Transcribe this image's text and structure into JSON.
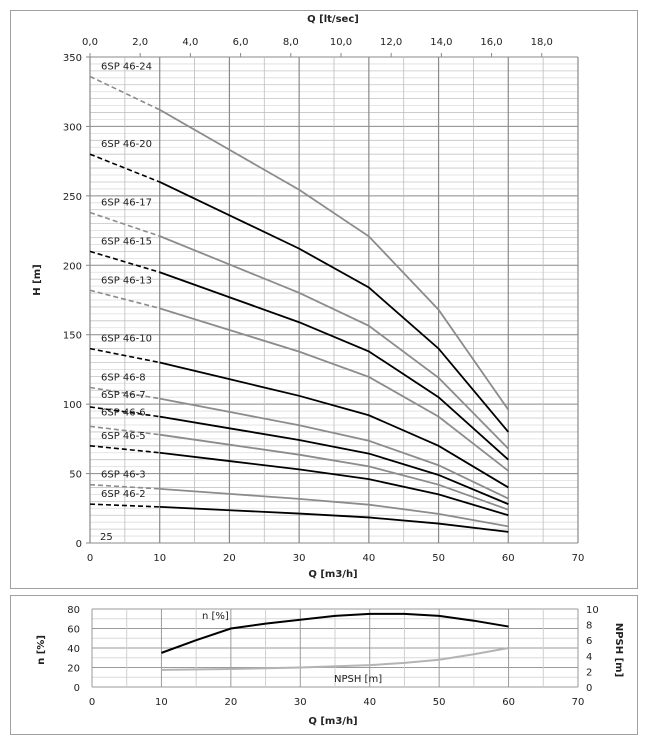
{
  "chart_data": [
    {
      "type": "line",
      "xlabel": "Q [m3/h]",
      "ylabel": "H [m]",
      "x2label": "Q [lt/sec]",
      "xlim": [
        0,
        70
      ],
      "ylim": [
        0,
        350
      ],
      "x2lim": [
        0,
        18
      ],
      "xticks": [
        0,
        10,
        20,
        30,
        40,
        50,
        60,
        70
      ],
      "yticks": [
        0,
        50,
        100,
        150,
        200,
        250,
        300,
        350
      ],
      "x2ticks": [
        "0,0",
        "2,0",
        "4,0",
        "6,0",
        "8,0",
        "10,0",
        "12,0",
        "14,0",
        "16,0",
        "18,0"
      ],
      "grid": true,
      "annotation": "25",
      "x": [
        0,
        10,
        20,
        30,
        40,
        50,
        60
      ],
      "dashed_until_x": 10,
      "series": [
        {
          "name": "6SP 46-24",
          "color": "#8c8c8c",
          "values": [
            336,
            312,
            283.2,
            254.4,
            220.8,
            168,
            96
          ]
        },
        {
          "name": "6SP 46-20",
          "color": "#000000",
          "values": [
            280,
            260,
            236,
            212,
            184,
            140,
            80
          ]
        },
        {
          "name": "6SP 46-17",
          "color": "#8c8c8c",
          "values": [
            238,
            221,
            200.6,
            180.2,
            156.4,
            119,
            68
          ]
        },
        {
          "name": "6SP 46-15",
          "color": "#000000",
          "values": [
            210,
            195,
            177,
            159,
            138,
            105,
            60
          ]
        },
        {
          "name": "6SP 46-13",
          "color": "#8c8c8c",
          "values": [
            182,
            169,
            153.4,
            137.8,
            119.6,
            91,
            52
          ]
        },
        {
          "name": "6SP 46-10",
          "color": "#000000",
          "values": [
            140,
            130,
            118,
            106,
            92,
            70,
            40
          ]
        },
        {
          "name": "6SP 46-8",
          "color": "#8c8c8c",
          "values": [
            112,
            104,
            94.4,
            84.8,
            73.6,
            56,
            32
          ]
        },
        {
          "name": "6SP 46-7",
          "color": "#000000",
          "values": [
            98,
            91,
            82.6,
            74.2,
            64.4,
            49,
            28
          ]
        },
        {
          "name": "6SP 46-6",
          "color": "#8c8c8c",
          "values": [
            84,
            78,
            70.8,
            63.6,
            55.2,
            42,
            24
          ]
        },
        {
          "name": "6SP 46-5",
          "color": "#000000",
          "values": [
            70,
            65,
            59,
            53,
            46,
            35,
            20
          ]
        },
        {
          "name": "6SP 46-3",
          "color": "#8c8c8c",
          "values": [
            42,
            39,
            35.4,
            31.8,
            27.6,
            21,
            12
          ]
        },
        {
          "name": "6SP 46-2",
          "color": "#000000",
          "values": [
            28,
            26,
            23.6,
            21.2,
            18.4,
            14,
            8
          ]
        }
      ]
    },
    {
      "type": "line",
      "xlabel": "Q [m3/h]",
      "ylabel": "n [%]",
      "y2label": "NPSH [m]",
      "xlim": [
        0,
        70
      ],
      "ylim": [
        0,
        80
      ],
      "y2lim": [
        0,
        10
      ],
      "xticks": [
        0,
        10,
        20,
        30,
        40,
        50,
        60,
        70
      ],
      "yticks": [
        0,
        20,
        40,
        60,
        80
      ],
      "y2ticks": [
        0,
        2,
        4,
        6,
        8,
        10
      ],
      "grid": true,
      "series": [
        {
          "name": "n [%]",
          "axis": "left",
          "color": "#000000",
          "x": [
            10,
            15,
            20,
            25,
            30,
            35,
            40,
            45,
            50,
            55,
            60
          ],
          "values": [
            35,
            48,
            60,
            65,
            69,
            73,
            75,
            75,
            73,
            68,
            62
          ]
        },
        {
          "name": "NPSH [m]",
          "axis": "right",
          "color": "#b4b4b4",
          "x": [
            10,
            20,
            30,
            40,
            45,
            50,
            55,
            60
          ],
          "values": [
            2.2,
            2.3,
            2.5,
            2.8,
            3.1,
            3.5,
            4.2,
            5.0
          ]
        }
      ]
    }
  ]
}
